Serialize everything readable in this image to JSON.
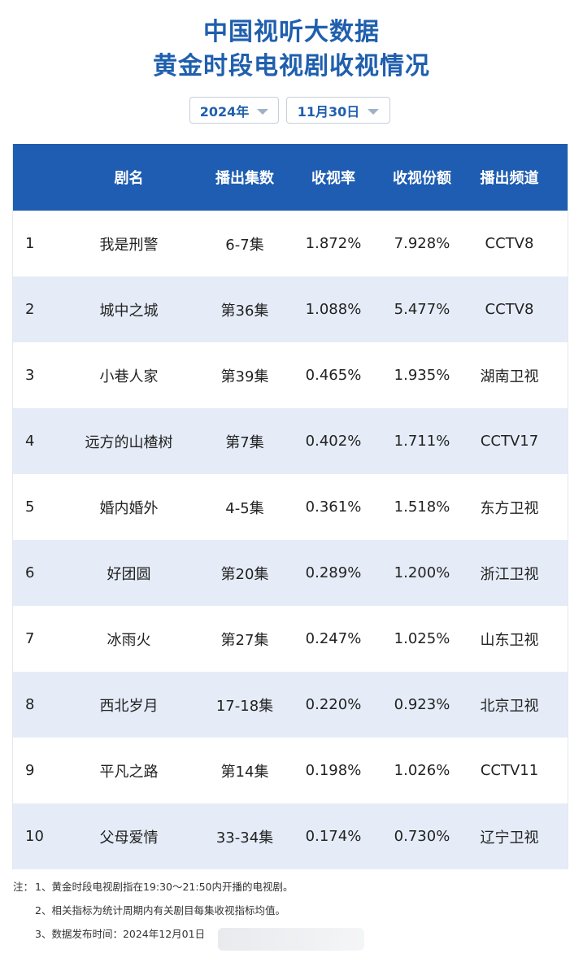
{
  "header": {
    "title_line1": "中国视听大数据",
    "title_line2": "黄金时段电视剧收视情况"
  },
  "selectors": {
    "year": "2024年",
    "date": "11月30日"
  },
  "table": {
    "columns": [
      "剧名",
      "播出集数",
      "收视率",
      "收视份额",
      "播出频道"
    ],
    "rows": [
      {
        "rank": "1",
        "name": "我是刑警",
        "episodes": "6-7集",
        "rating": "1.872%",
        "share": "7.928%",
        "channel": "CCTV8"
      },
      {
        "rank": "2",
        "name": "城中之城",
        "episodes": "第36集",
        "rating": "1.088%",
        "share": "5.477%",
        "channel": "CCTV8"
      },
      {
        "rank": "3",
        "name": "小巷人家",
        "episodes": "第39集",
        "rating": "0.465%",
        "share": "1.935%",
        "channel": "湖南卫视"
      },
      {
        "rank": "4",
        "name": "远方的山楂树",
        "episodes": "第7集",
        "rating": "0.402%",
        "share": "1.711%",
        "channel": "CCTV17"
      },
      {
        "rank": "5",
        "name": "婚内婚外",
        "episodes": "4-5集",
        "rating": "0.361%",
        "share": "1.518%",
        "channel": "东方卫视"
      },
      {
        "rank": "6",
        "name": "好团圆",
        "episodes": "第20集",
        "rating": "0.289%",
        "share": "1.200%",
        "channel": "浙江卫视"
      },
      {
        "rank": "7",
        "name": "冰雨火",
        "episodes": "第27集",
        "rating": "0.247%",
        "share": "1.025%",
        "channel": "山东卫视"
      },
      {
        "rank": "8",
        "name": "西北岁月",
        "episodes": "17-18集",
        "rating": "0.220%",
        "share": "0.923%",
        "channel": "北京卫视"
      },
      {
        "rank": "9",
        "name": "平凡之路",
        "episodes": "第14集",
        "rating": "0.198%",
        "share": "1.026%",
        "channel": "CCTV11"
      },
      {
        "rank": "10",
        "name": "父母爱情",
        "episodes": "33-34集",
        "rating": "0.174%",
        "share": "0.730%",
        "channel": "辽宁卫视"
      }
    ]
  },
  "notes": {
    "prefix": "注：",
    "items": [
      "1、黄金时段电视剧指在19:30～21:50内开播的电视剧。",
      "2、相关指标为统计周期内有关剧目每集收视指标均值。",
      "3、数据发布时间：2024年12月01日"
    ]
  }
}
